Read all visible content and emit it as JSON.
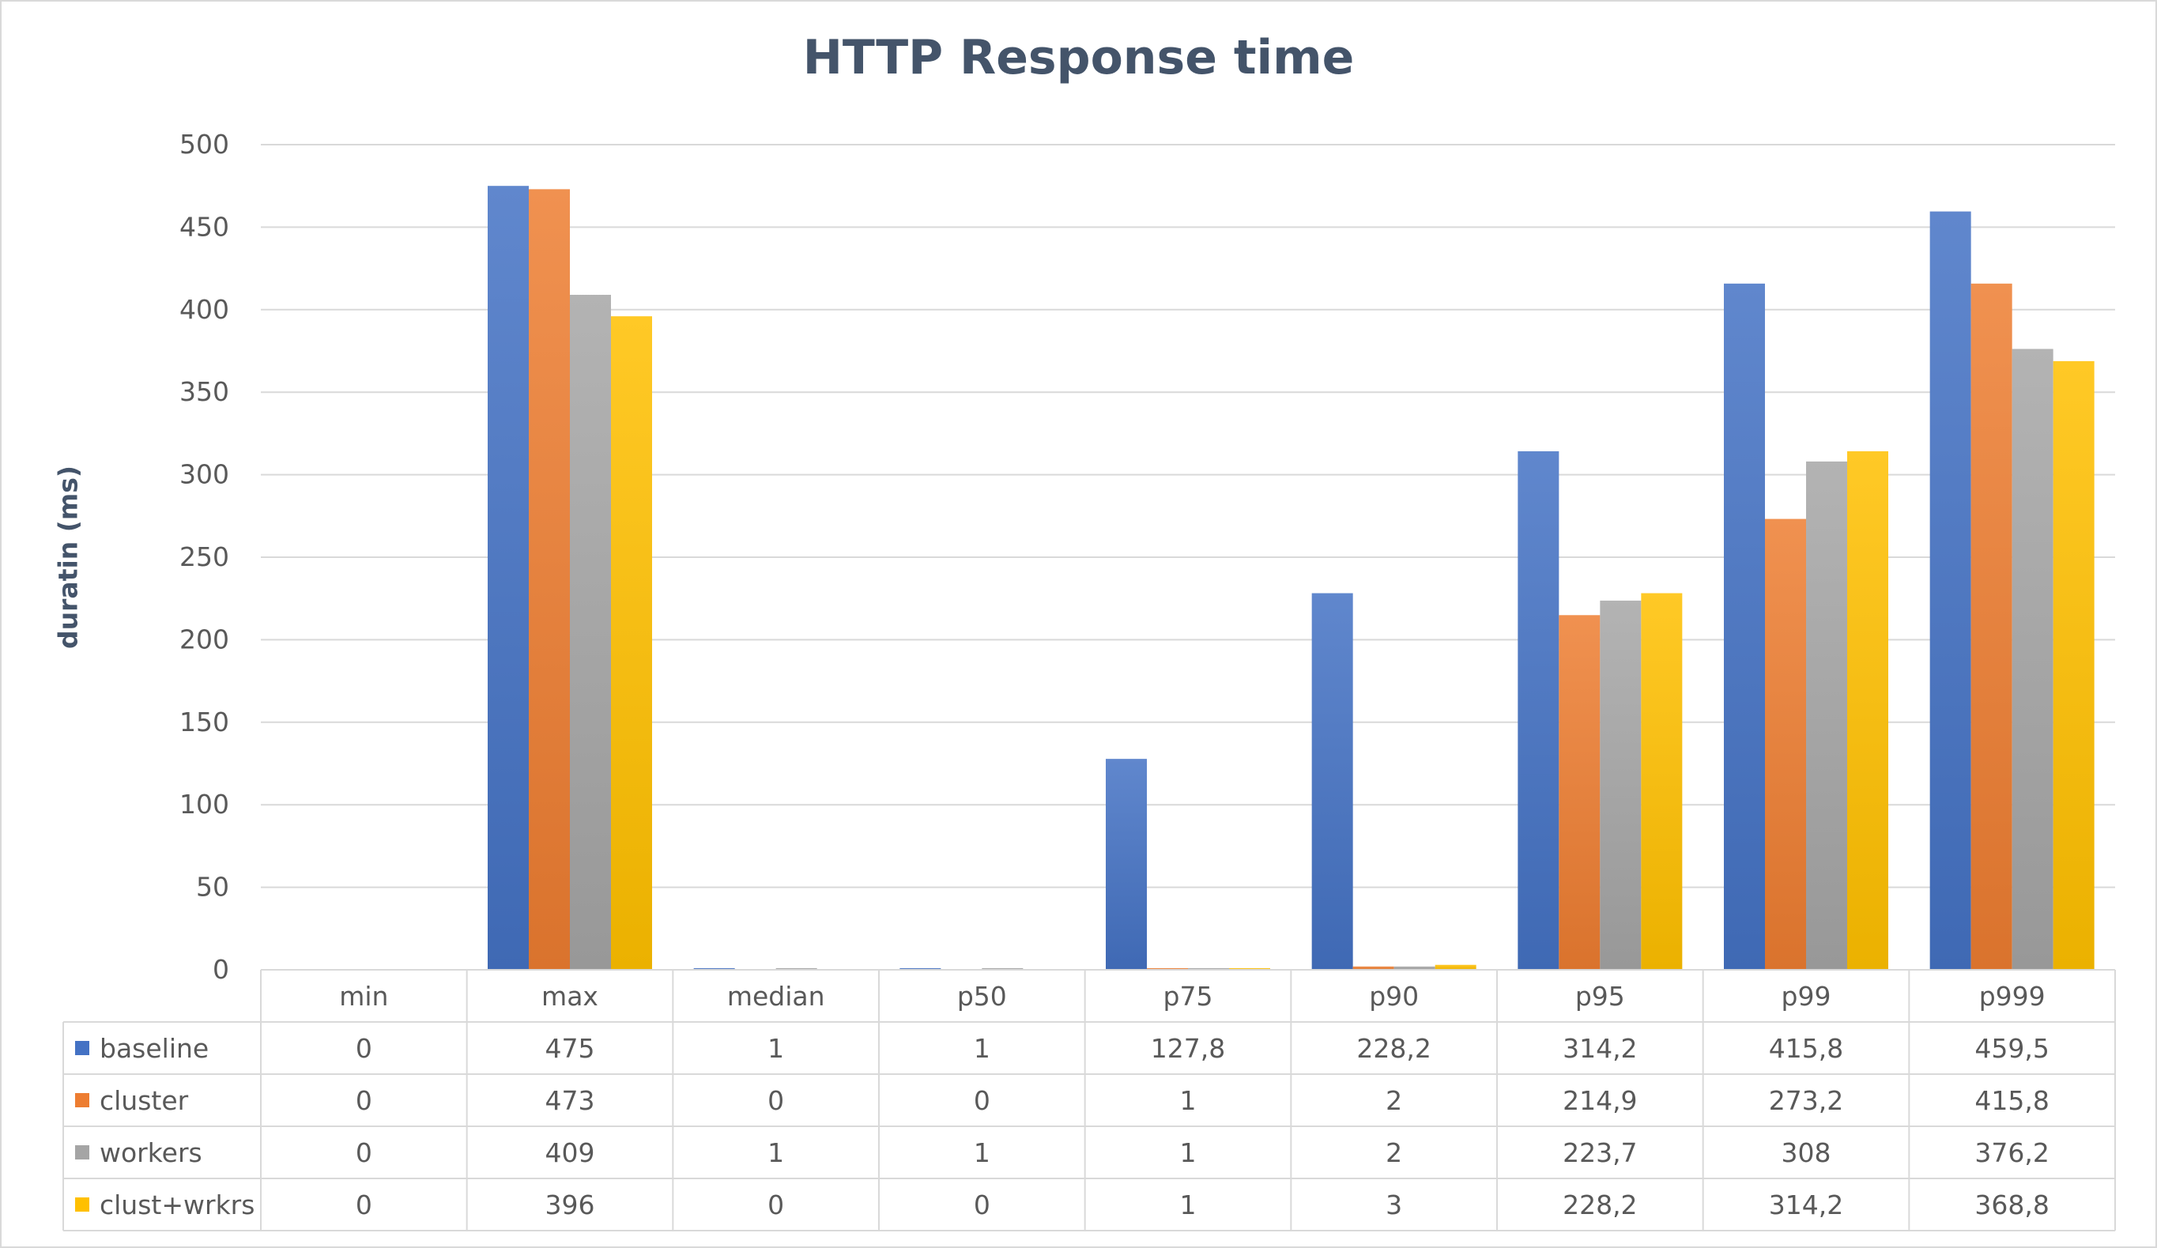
{
  "chart_data": {
    "type": "bar",
    "title": "HTTP Response time",
    "xlabel": "",
    "ylabel": "duratin (ms)",
    "ylim": [
      0,
      500
    ],
    "yticks": [
      "0",
      "50",
      "100",
      "150",
      "200",
      "250",
      "300",
      "350",
      "400",
      "450",
      "500"
    ],
    "grid": true,
    "legend_placement": "data table below chart",
    "categories": [
      "min",
      "max",
      "median",
      "p50",
      "p75",
      "p90",
      "p95",
      "p99",
      "p999"
    ],
    "series": [
      {
        "name": "baseline",
        "color": "#4472c4",
        "values": [
          0,
          475,
          1,
          1,
          127.8,
          228.2,
          314.2,
          415.8,
          459.5
        ],
        "labels": [
          "0",
          "475",
          "1",
          "1",
          "127,8",
          "228,2",
          "314,2",
          "415,8",
          "459,5"
        ]
      },
      {
        "name": "cluster",
        "color": "#ed7d31",
        "values": [
          0,
          473,
          0,
          0,
          1,
          2,
          214.9,
          273.2,
          415.8
        ],
        "labels": [
          "0",
          "473",
          "0",
          "0",
          "1",
          "2",
          "214,9",
          "273,2",
          "415,8"
        ]
      },
      {
        "name": "workers",
        "color": "#a5a5a5",
        "values": [
          0,
          409,
          1,
          1,
          1,
          2,
          223.7,
          308,
          376.2
        ],
        "labels": [
          "0",
          "409",
          "1",
          "1",
          "1",
          "2",
          "223,7",
          "308",
          "376,2"
        ]
      },
      {
        "name": "clust+wrkrs",
        "color": "#ffc000",
        "values": [
          0,
          396,
          0,
          0,
          1,
          3,
          228.2,
          314.2,
          368.8
        ],
        "labels": [
          "0",
          "396",
          "0",
          "0",
          "1",
          "3",
          "228,2",
          "314,2",
          "368,8"
        ]
      }
    ]
  }
}
